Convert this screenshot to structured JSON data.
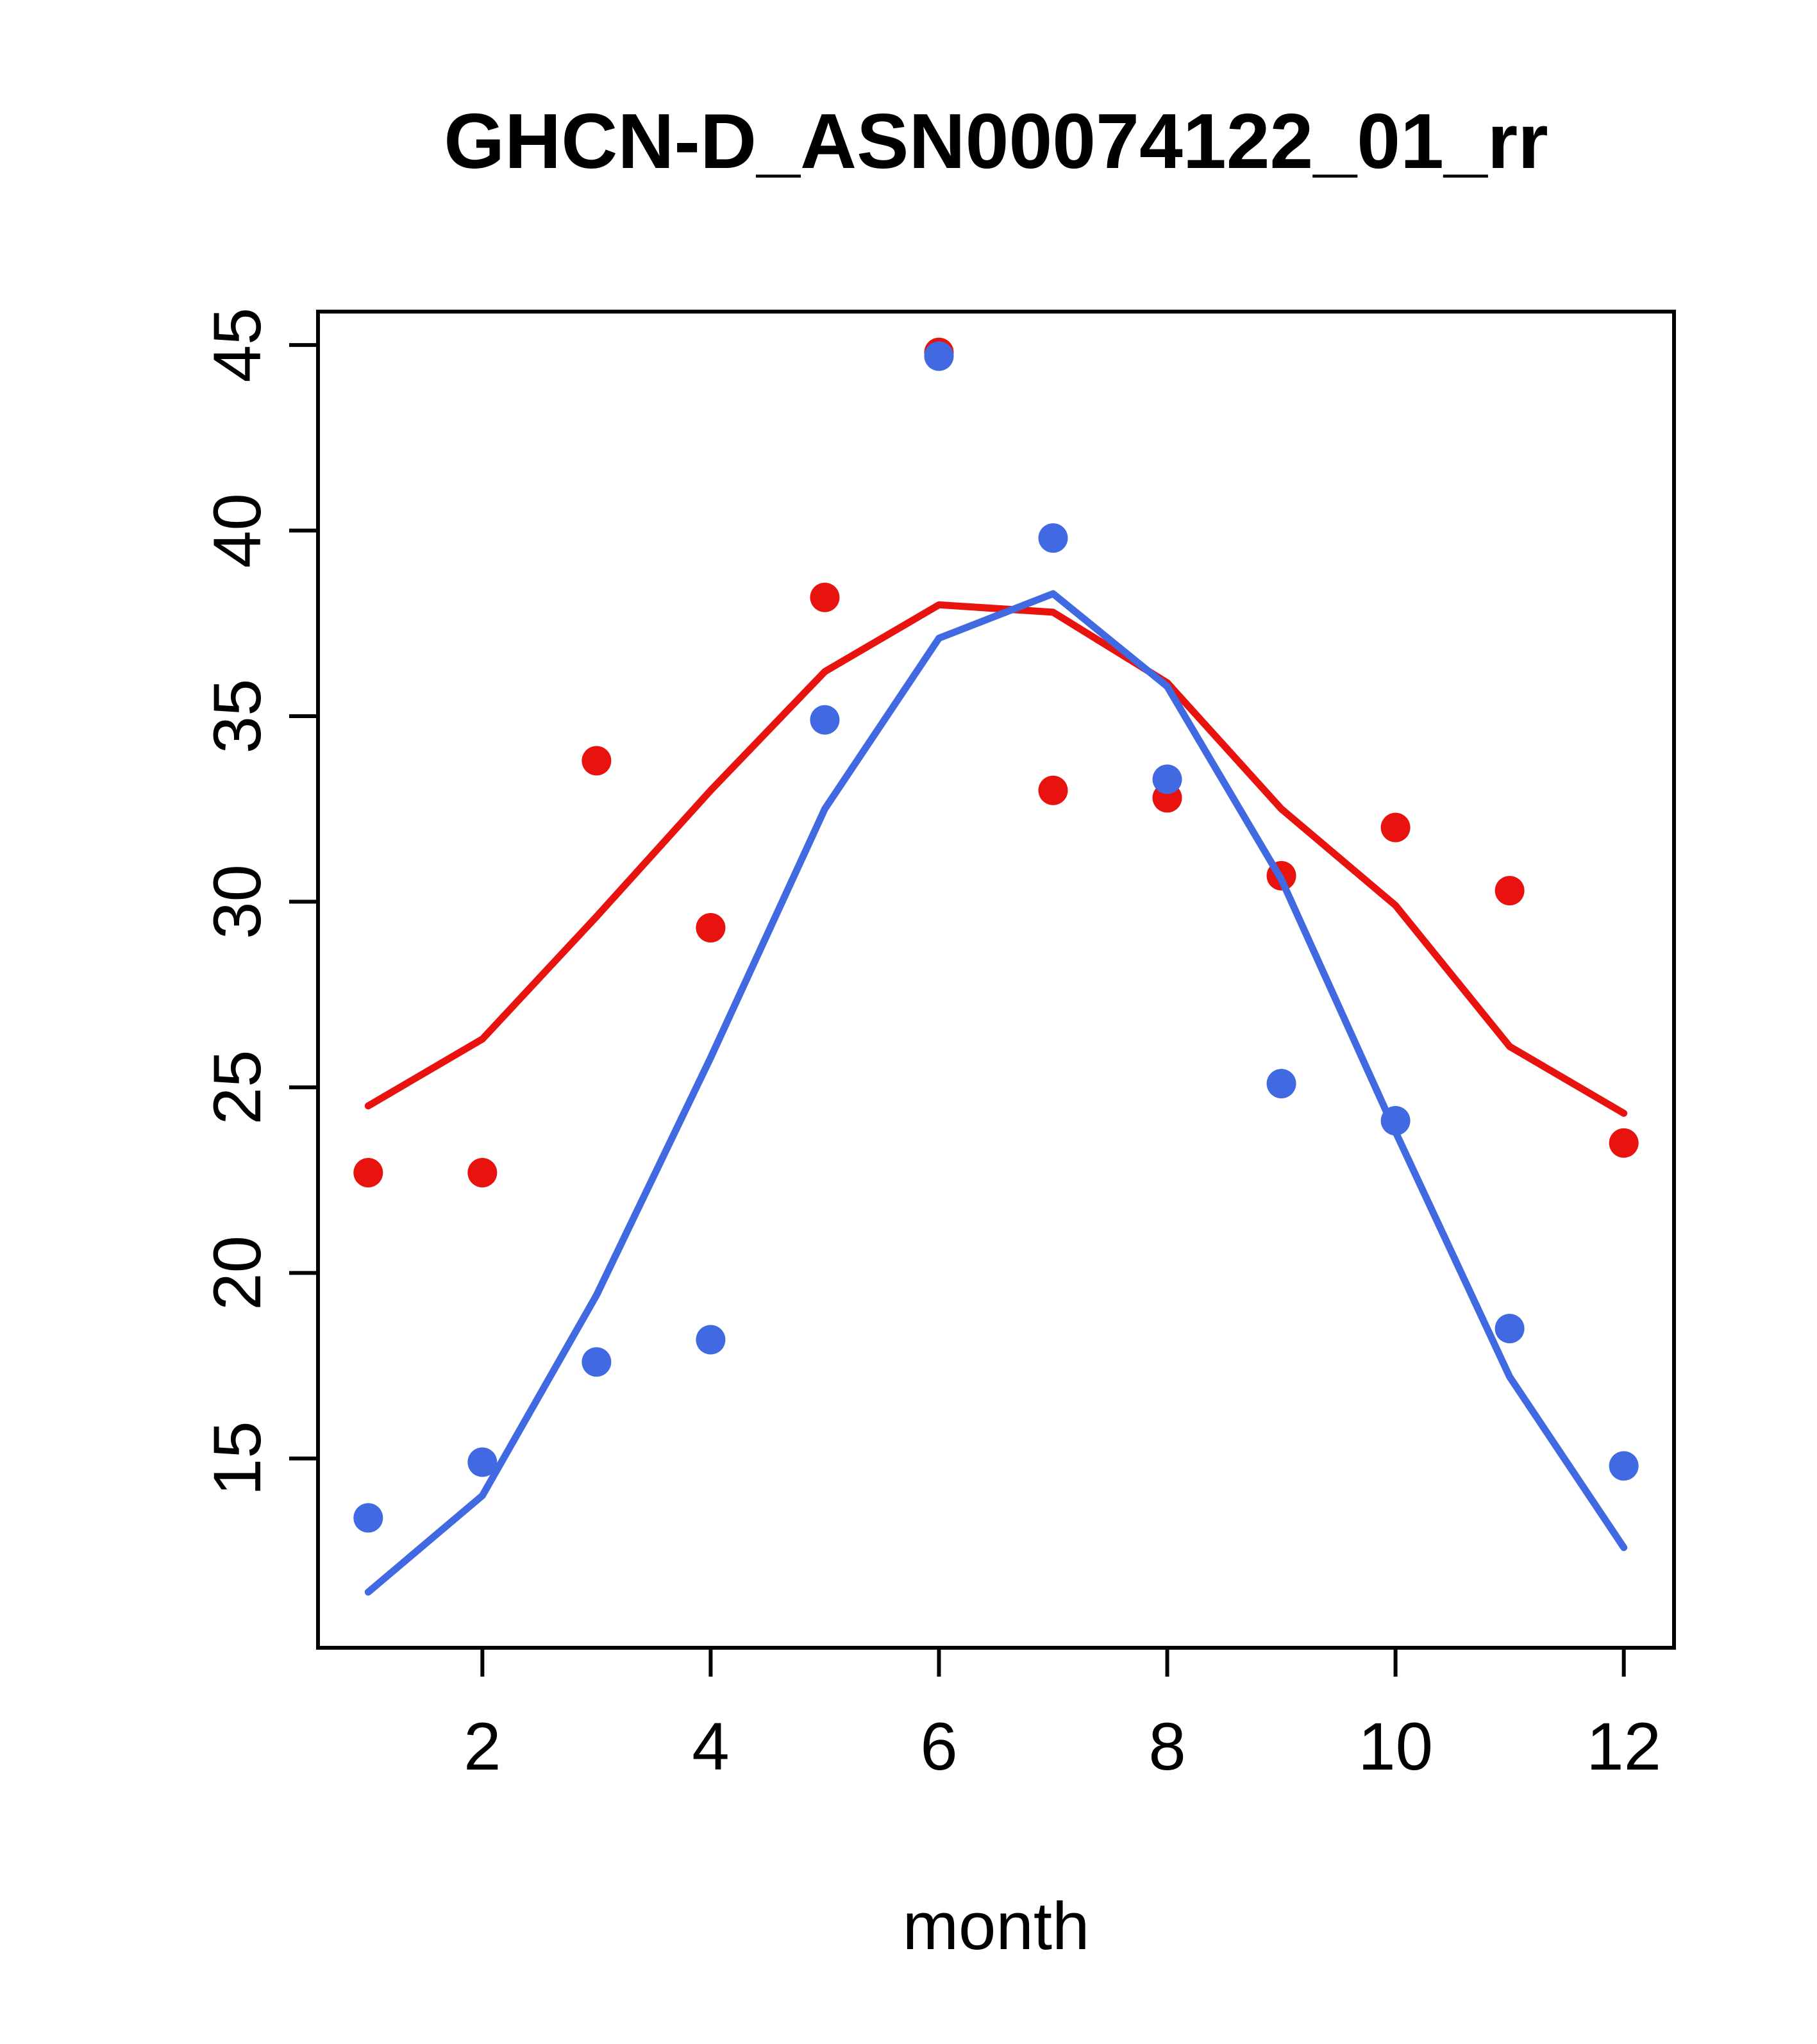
{
  "chart_data": {
    "type": "scatter",
    "title": "GHCN-D_ASN00074122_01_rr",
    "xlabel": "month",
    "ylabel": "",
    "xlim": [
      0.56,
      12.44
    ],
    "ylim": [
      9.9,
      45.9
    ],
    "xticks": [
      2,
      4,
      6,
      8,
      10,
      12
    ],
    "yticks": [
      15,
      20,
      25,
      30,
      35,
      40,
      45
    ],
    "grid": false,
    "legend": false,
    "x": [
      1,
      2,
      3,
      4,
      5,
      6,
      7,
      8,
      9,
      10,
      11,
      12
    ],
    "series": [
      {
        "name": "red-points",
        "kind": "points",
        "color": "#e8120e",
        "values": [
          22.7,
          22.7,
          33.8,
          29.3,
          38.2,
          44.8,
          33.0,
          32.8,
          30.7,
          32.0,
          30.3,
          23.5
        ]
      },
      {
        "name": "blue-points",
        "kind": "points",
        "color": "#4169e1",
        "values": [
          13.4,
          14.9,
          17.6,
          18.2,
          34.9,
          44.7,
          39.8,
          33.3,
          25.1,
          24.1,
          18.5,
          14.8
        ]
      },
      {
        "name": "red-smooth-line",
        "kind": "line",
        "color": "#e8120e",
        "values": [
          24.5,
          26.3,
          29.6,
          33.0,
          36.2,
          38.0,
          37.8,
          35.9,
          32.5,
          29.9,
          26.1,
          24.3
        ]
      },
      {
        "name": "blue-smooth-line",
        "kind": "line",
        "color": "#4169e1",
        "values": [
          11.4,
          14.0,
          19.4,
          25.8,
          32.5,
          37.1,
          38.3,
          35.8,
          30.6,
          23.8,
          17.2,
          12.6
        ]
      }
    ]
  }
}
